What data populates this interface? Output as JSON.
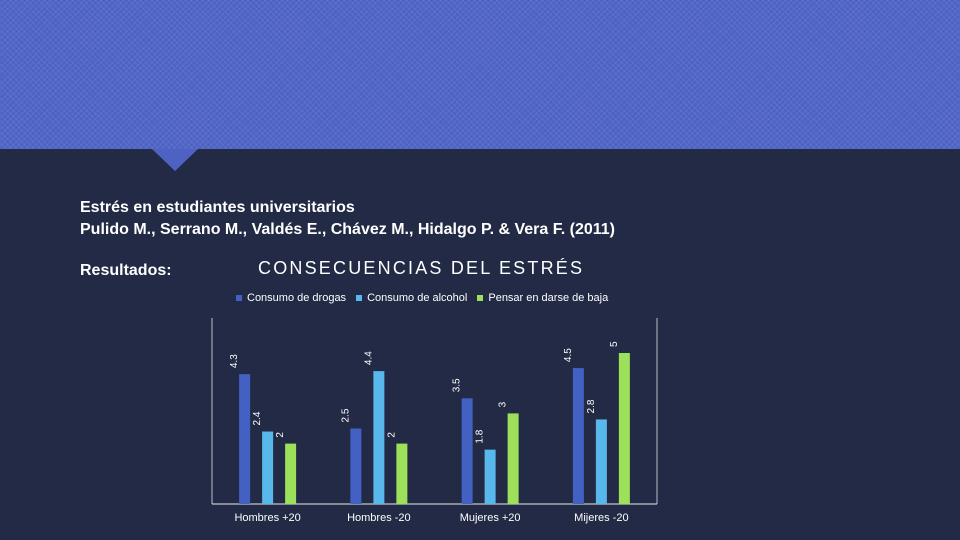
{
  "slide": {
    "title_line1": "Estrés en estudiantes universitarios",
    "title_line2": "Pulido M., Serrano M., Valdés E., Chávez M., Hidalgo P. & Vera F.  (2011)",
    "section_label": "Resultados:"
  },
  "colors": {
    "background": "#222a45",
    "accent": "#4e62c4"
  },
  "chart_data": {
    "type": "bar",
    "title": "CONSECUENCIAS DEL ESTRÉS",
    "categories": [
      "Hombres +20",
      "Hombres -20",
      "Mujeres +20",
      "Mijeres -20"
    ],
    "series": [
      {
        "name": "Consumo de drogas",
        "color": "#4361c2",
        "values": [
          4.3,
          2.5,
          3.5,
          4.5
        ],
        "labels": [
          "4.3",
          "2.5",
          "3.5",
          "4.5"
        ]
      },
      {
        "name": "Consumo de alcohol",
        "color": "#58b8ec",
        "values": [
          2.4,
          4.4,
          1.8,
          2.8
        ],
        "labels": [
          "2.4",
          "4.4",
          "1.8",
          "2.8"
        ]
      },
      {
        "name": "Pensar en darse de baja",
        "color": "#9de05a",
        "values": [
          2,
          2,
          3,
          5
        ],
        "labels": [
          "2",
          "2",
          "3",
          "5"
        ]
      }
    ],
    "ylim": [
      0,
      5.5
    ],
    "legend_position": "top",
    "grid": false
  }
}
